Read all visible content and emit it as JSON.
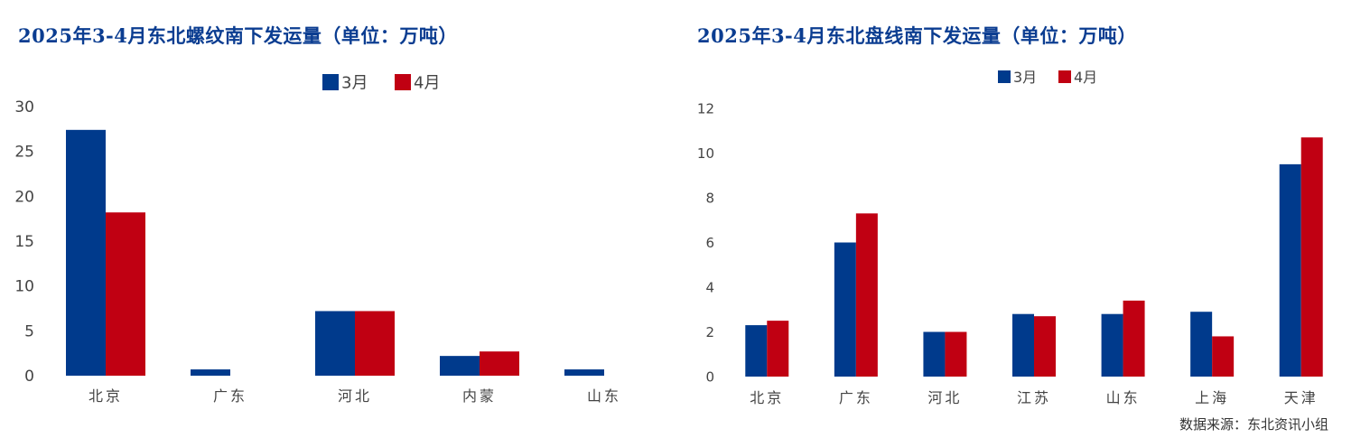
{
  "colors": {
    "march": "#003A8C",
    "april": "#C00012",
    "title": "#0b3d91",
    "text": "#444444"
  },
  "chart_data": [
    {
      "type": "bar",
      "title": "2025年3-4月东北螺纹南下发运量（单位：万吨）",
      "categories": [
        "北京",
        "广东",
        "河北",
        "内蒙",
        "山东"
      ],
      "series": [
        {
          "name": "3月",
          "values": [
            27.4,
            0.7,
            7.2,
            2.2,
            0.7
          ]
        },
        {
          "name": "4月",
          "values": [
            18.2,
            0,
            7.2,
            2.7,
            0
          ]
        }
      ],
      "yticks": [
        "0",
        "5",
        "10",
        "15",
        "20",
        "25",
        "30"
      ],
      "ylim": [
        0,
        30
      ],
      "grid": false,
      "legend": "top-center"
    },
    {
      "type": "bar",
      "title": "2025年3-4月东北盘线南下发运量（单位：万吨）",
      "categories": [
        "北京",
        "广东",
        "河北",
        "江苏",
        "山东",
        "上海",
        "天津"
      ],
      "series": [
        {
          "name": "3月",
          "values": [
            2.3,
            6.0,
            2.0,
            2.8,
            2.8,
            2.9,
            9.5
          ]
        },
        {
          "name": "4月",
          "values": [
            2.5,
            7.3,
            2.0,
            2.7,
            3.4,
            1.8,
            10.7
          ]
        }
      ],
      "yticks": [
        "0",
        "2",
        "4",
        "6",
        "8",
        "10",
        "12"
      ],
      "ylim": [
        0,
        12
      ],
      "grid": false,
      "legend": "top-center"
    }
  ],
  "source_note": "数据来源：东北资讯小组"
}
